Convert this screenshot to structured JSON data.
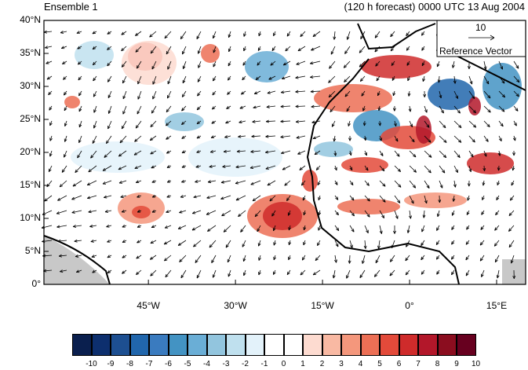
{
  "header": {
    "left_title": "Ensemble 1",
    "right_title": "(120 h forecast) 0000 UTC 13 Aug 2004"
  },
  "axes": {
    "y_ticks": [
      "40°N",
      "35°N",
      "30°N",
      "25°N",
      "20°N",
      "15°N",
      "10°N",
      "5°N",
      "0°"
    ],
    "x_ticks": [
      "45°W",
      "30°W",
      "15°W",
      "0°",
      "15°E"
    ]
  },
  "reference_vector": {
    "value": "10",
    "label": "Reference Vector"
  },
  "colorbar": {
    "labels": [
      "-10",
      "-9",
      "-8",
      "-7",
      "-6",
      "-5",
      "-4",
      "-3",
      "-2",
      "-1",
      "0",
      "1",
      "2",
      "3",
      "4",
      "5",
      "6",
      "7",
      "8",
      "9",
      "10"
    ],
    "colors": [
      "#0a1f4e",
      "#0d2f6e",
      "#1d4f91",
      "#2166ac",
      "#3a7bbf",
      "#4393c3",
      "#6aaed6",
      "#92c5de",
      "#bfe0ee",
      "#e3f2fa",
      "#ffffff",
      "#ffffff",
      "#fddbd0",
      "#f9b9a3",
      "#f4977c",
      "#ec6f55",
      "#e34a3a",
      "#cf2b2b",
      "#b3172a",
      "#8b0d1f",
      "#67001f"
    ]
  },
  "colors": {
    "land_outline": "#000000",
    "vector": "#000000",
    "missing_land": "#c8c8c8"
  }
}
